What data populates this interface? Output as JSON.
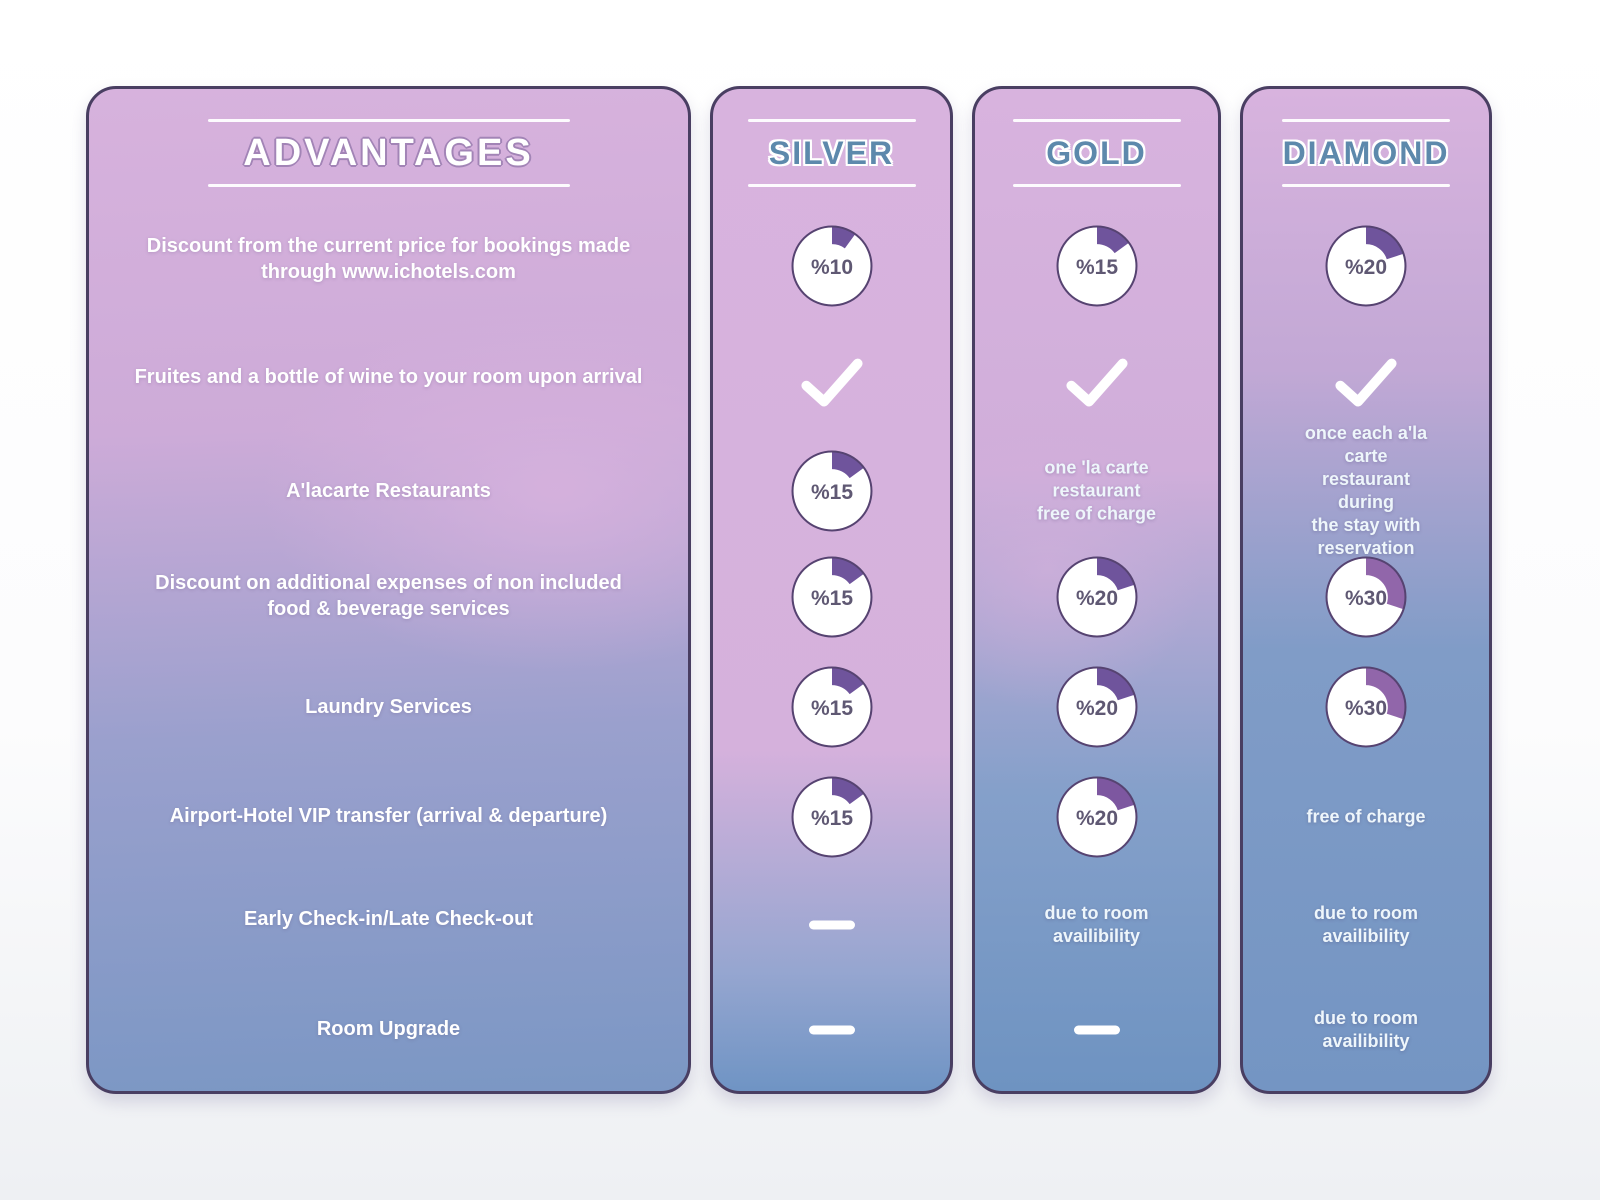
{
  "advantages": {
    "title": "ADVANTAGES",
    "rows": [
      "Discount from the current price for bookings made\nthrough www.ichotels.com",
      "Fruites and a bottle of wine to your room upon arrival",
      "A'lacarte Restaurants",
      "Discount on additional expenses of non included\nfood & beverage services",
      "Laundry Services",
      "Airport-Hotel VIP transfer (arrival & departure)",
      "Early Check-in/Late Check-out",
      "Room Upgrade"
    ]
  },
  "tiers": [
    {
      "id": "silver",
      "name": "SILVER",
      "cells": [
        {
          "type": "donut",
          "value": "%10",
          "pct": 10,
          "color": "#6f549c"
        },
        {
          "type": "check"
        },
        {
          "type": "donut",
          "value": "%15",
          "pct": 15,
          "color": "#6f549c"
        },
        {
          "type": "donut",
          "value": "%15",
          "pct": 15,
          "color": "#6f549c"
        },
        {
          "type": "donut",
          "value": "%15",
          "pct": 15,
          "color": "#6f549c"
        },
        {
          "type": "donut",
          "value": "%15",
          "pct": 15,
          "color": "#6f549c"
        },
        {
          "type": "dash"
        },
        {
          "type": "dash"
        }
      ]
    },
    {
      "id": "gold",
      "name": "GOLD",
      "cells": [
        {
          "type": "donut",
          "value": "%15",
          "pct": 15,
          "color": "#6f549c"
        },
        {
          "type": "check"
        },
        {
          "type": "text",
          "value": "one 'la carte restaurant\nfree of charge"
        },
        {
          "type": "donut",
          "value": "%20",
          "pct": 20,
          "color": "#6f549c"
        },
        {
          "type": "donut",
          "value": "%20",
          "pct": 20,
          "color": "#6f549c"
        },
        {
          "type": "donut",
          "value": "%20",
          "pct": 20,
          "color": "#7d57a0"
        },
        {
          "type": "text",
          "value": "due to room availibility"
        },
        {
          "type": "dash"
        }
      ]
    },
    {
      "id": "diamond",
      "name": "DIAMOND",
      "cells": [
        {
          "type": "donut",
          "value": "%20",
          "pct": 20,
          "color": "#6f549c"
        },
        {
          "type": "check"
        },
        {
          "type": "text",
          "value": "once each a'la carte\nrestaurant during\nthe stay with\nreservation"
        },
        {
          "type": "donut",
          "value": "%30",
          "pct": 30,
          "color": "#9166aa"
        },
        {
          "type": "donut",
          "value": "%30",
          "pct": 30,
          "color": "#9166aa"
        },
        {
          "type": "text",
          "value": "free of charge"
        },
        {
          "type": "text",
          "value": "due to room availibility"
        },
        {
          "type": "text",
          "value": "due to room availibility"
        }
      ]
    }
  ],
  "colors": {
    "card_border": "#493e62",
    "tier_title": "#5d89ac",
    "advantages_title_fill": "#ffffff",
    "advantages_title_outline": "#a284b6",
    "donut_border": "#564371",
    "donut_text": "#5f5873",
    "arc_purple": "#6f549c",
    "arc_mauve": "#9166aa",
    "check": "#ffffff",
    "card_top_pink": "#d8b3de",
    "card_bottom_blue": "#7495c3"
  },
  "chart_data": {
    "type": "table",
    "title": "ADVANTAGES",
    "columns": [
      "SILVER",
      "GOLD",
      "DIAMOND"
    ],
    "rows": [
      {
        "advantage": "Discount from the current price for bookings made through www.ichotels.com",
        "silver": "10%",
        "gold": "15%",
        "diamond": "20%"
      },
      {
        "advantage": "Fruites and a bottle of wine to your room upon arrival",
        "silver": "included",
        "gold": "included",
        "diamond": "included"
      },
      {
        "advantage": "A'lacarte Restaurants",
        "silver": "15%",
        "gold": "one 'la carte restaurant free of charge",
        "diamond": "once each a'la carte restaurant during the stay with reservation"
      },
      {
        "advantage": "Discount on additional expenses of non included food & beverage services",
        "silver": "15%",
        "gold": "20%",
        "diamond": "30%"
      },
      {
        "advantage": "Laundry Services",
        "silver": "15%",
        "gold": "20%",
        "diamond": "30%"
      },
      {
        "advantage": "Airport-Hotel VIP transfer (arrival & departure)",
        "silver": "15%",
        "gold": "20%",
        "diamond": "free of charge"
      },
      {
        "advantage": "Early Check-in/Late Check-out",
        "silver": "not included",
        "gold": "due to room availibility",
        "diamond": "due to room availibility"
      },
      {
        "advantage": "Room Upgrade",
        "silver": "not included",
        "gold": "not included",
        "diamond": "due to room availibility"
      }
    ],
    "donut_percentages": [
      [
        10,
        15,
        20
      ],
      [
        15,
        15,
        15,
        15,
        20,
        20,
        20,
        30,
        30
      ]
    ]
  }
}
